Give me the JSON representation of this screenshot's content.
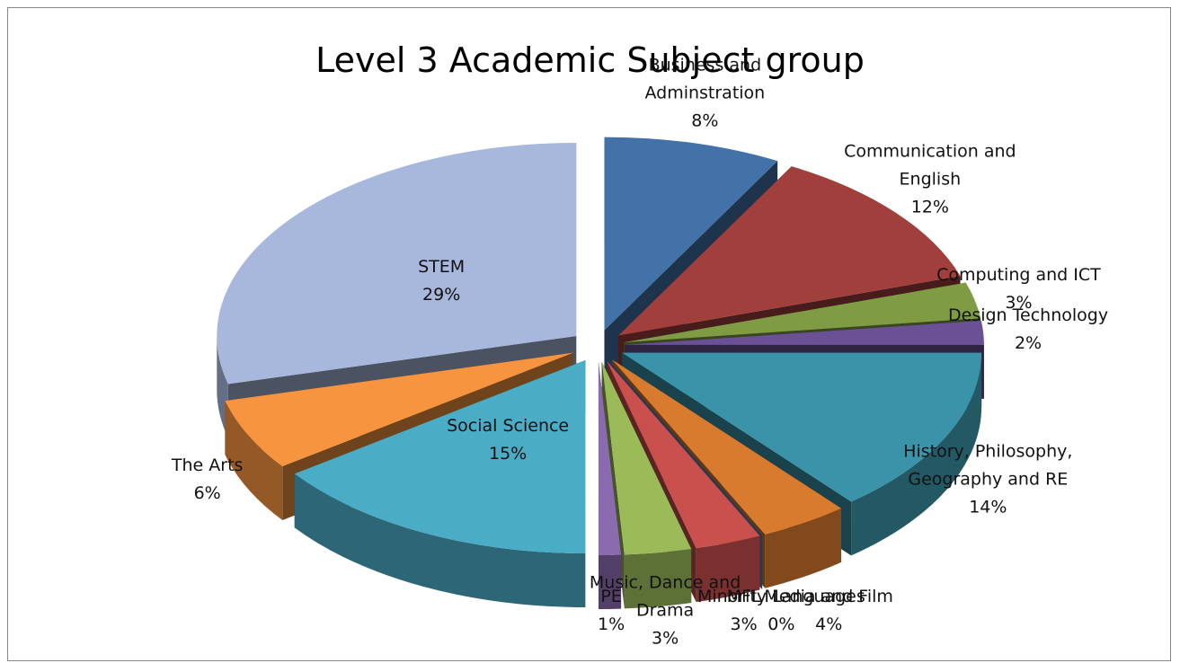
{
  "chart_data": {
    "type": "pie",
    "title": "Level 3 Academic Subject group",
    "categories": [
      "Business and Adminstration",
      "Communication and English",
      "Computing and ICT",
      "Design Technology",
      "History, Philosophy, Geography and RE",
      "Media and Film",
      "Minority Languages",
      "MFL",
      "Music, Dance and Drama",
      "PE",
      "Social Science",
      "The Arts",
      "STEM"
    ],
    "values": [
      8,
      12,
      3,
      2,
      14,
      4,
      0,
      3,
      3,
      1,
      15,
      6,
      29
    ],
    "value_labels": [
      "8%",
      "12%",
      "3%",
      "2%",
      "14%",
      "4%",
      "0%",
      "3%",
      "3%",
      "1%",
      "15%",
      "6%",
      "29%"
    ],
    "colors": [
      "#4372a8",
      "#a03f3c",
      "#7f9c44",
      "#6a5196",
      "#3a93a9",
      "#d97b2e",
      "#4f81bd",
      "#c9504d",
      "#9bbb59",
      "#8a6bae",
      "#4bacc6",
      "#f7943f",
      "#a7b8dc"
    ]
  }
}
